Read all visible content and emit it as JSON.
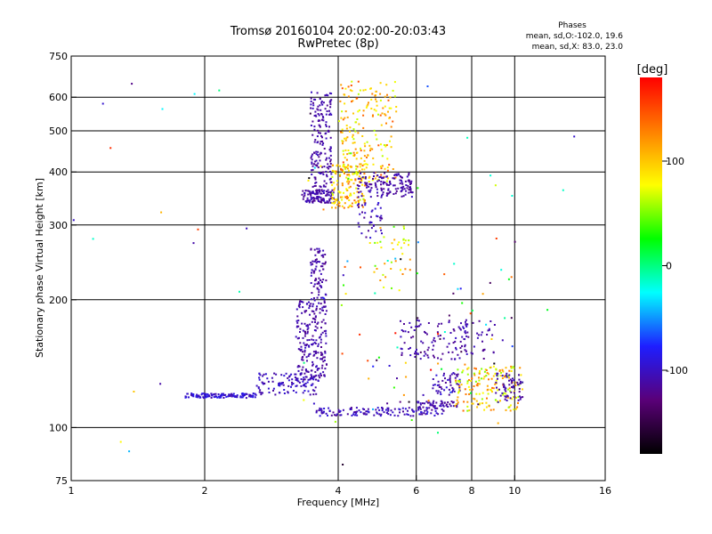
{
  "chart_data": {
    "type": "scatter",
    "title": "Tromsø 20160104 20:02:00-20:03:43",
    "subtitle": "RwPretec (8p)",
    "xlabel": "Frequency [MHz]",
    "ylabel": "Stationary phase Virtual Height [km]",
    "x_scale": "log",
    "y_scale": "log",
    "xlim": [
      1,
      16
    ],
    "ylim": [
      75,
      750
    ],
    "x_ticks": [
      1,
      2,
      4,
      6,
      8,
      10,
      16
    ],
    "x_tick_labels": [
      "1",
      "2",
      "4",
      "6",
      "8",
      "10",
      "16"
    ],
    "x_gridlines": [
      2,
      4,
      6,
      8,
      10
    ],
    "y_ticks": [
      75,
      100,
      200,
      300,
      400,
      500,
      600,
      750
    ],
    "y_tick_labels": [
      "75",
      "100",
      "200",
      "300",
      "400",
      "500",
      "600",
      "750"
    ],
    "y_gridlines": [
      100,
      200,
      300,
      400,
      500,
      600
    ],
    "grid": true,
    "legend": {
      "placement": "top-right",
      "title": "Phases",
      "lines": [
        "mean, sd,O:-102.0, 19.6",
        "mean, sd,X:  83.0, 23.0"
      ]
    },
    "colorbar": {
      "label": "[deg]",
      "range": [
        -180,
        180
      ],
      "ticks": [
        -100,
        0,
        100
      ],
      "tick_labels": [
        "-100",
        "0",
        "100"
      ],
      "colors": [
        "#000000",
        "#5a0078",
        "#1e1eff",
        "#00ffff",
        "#00ff00",
        "#ffff00",
        "#ff8000",
        "#ff0000"
      ]
    },
    "clusters": [
      {
        "x": [
          1.8,
          2.6
        ],
        "y": [
          118,
          121
        ],
        "n": 120,
        "c": [
          -110,
          -80
        ]
      },
      {
        "x": [
          2.6,
          3.6
        ],
        "y": [
          120,
          135
        ],
        "n": 110,
        "c": [
          -115,
          -90
        ]
      },
      {
        "x": [
          3.2,
          3.75
        ],
        "y": [
          130,
          200
        ],
        "n": 220,
        "c": [
          -120,
          -100
        ]
      },
      {
        "x": [
          3.45,
          3.75
        ],
        "y": [
          200,
          265
        ],
        "n": 80,
        "c": [
          -120,
          -100
        ]
      },
      {
        "x": [
          3.3,
          3.9
        ],
        "y": [
          340,
          365
        ],
        "n": 120,
        "c": [
          -120,
          -100
        ]
      },
      {
        "x": [
          3.45,
          3.85
        ],
        "y": [
          370,
          620
        ],
        "n": 170,
        "c": [
          -120,
          -100
        ]
      },
      {
        "x": [
          3.85,
          4.6
        ],
        "y": [
          330,
          420
        ],
        "n": 140,
        "c": [
          60,
          140
        ]
      },
      {
        "x": [
          4.0,
          5.4
        ],
        "y": [
          380,
          660
        ],
        "n": 200,
        "c": [
          60,
          150
        ]
      },
      {
        "x": [
          4.4,
          5.9
        ],
        "y": [
          350,
          400
        ],
        "n": 140,
        "c": [
          -120,
          -100
        ]
      },
      {
        "x": [
          4.4,
          5.0
        ],
        "y": [
          280,
          340
        ],
        "n": 40,
        "c": [
          -120,
          -90
        ]
      },
      {
        "x": [
          4.8,
          5.8
        ],
        "y": [
          210,
          300
        ],
        "n": 40,
        "c": [
          40,
          130
        ]
      },
      {
        "x": [
          3.55,
          6.9
        ],
        "y": [
          107,
          112
        ],
        "n": 140,
        "c": [
          -120,
          -90
        ]
      },
      {
        "x": [
          6.0,
          7.4
        ],
        "y": [
          112,
          116
        ],
        "n": 50,
        "c": [
          -120,
          -100
        ]
      },
      {
        "x": [
          5.5,
          7.8
        ],
        "y": [
          145,
          180
        ],
        "n": 100,
        "c": [
          -120,
          -100
        ]
      },
      {
        "x": [
          6.5,
          7.5
        ],
        "y": [
          120,
          135
        ],
        "n": 50,
        "c": [
          -120,
          -90
        ]
      },
      {
        "x": [
          7.3,
          10.4
        ],
        "y": [
          110,
          140
        ],
        "n": 160,
        "c": [
          50,
          140
        ]
      },
      {
        "x": [
          7.5,
          9.0
        ],
        "y": [
          150,
          180
        ],
        "n": 40,
        "c": [
          -120,
          -100
        ]
      },
      {
        "x": [
          9.0,
          10.4
        ],
        "y": [
          115,
          135
        ],
        "n": 60,
        "c": [
          -120,
          -100
        ]
      },
      {
        "x": [
          4.0,
          10.0
        ],
        "y": [
          110,
          260
        ],
        "n": 60,
        "c": [
          -180,
          180
        ]
      },
      {
        "x": [
          1.0,
          14.0
        ],
        "y": [
          75,
          650
        ],
        "n": 60,
        "c": [
          -180,
          180
        ]
      }
    ]
  }
}
